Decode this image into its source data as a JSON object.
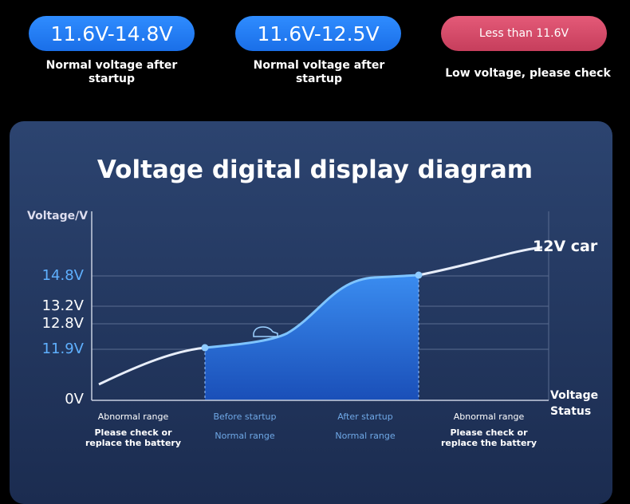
{
  "badges": [
    {
      "label": "11.6V-14.8V",
      "caption": "Normal voltage after startup"
    },
    {
      "label": "11.6V-12.5V",
      "caption": "Normal voltage after startup"
    },
    {
      "label": "Less than 11.6V",
      "caption": "Low voltage, please check"
    }
  ],
  "diagram": {
    "title": "Voltage digital display diagram",
    "y_axis_label": "Voltage/V",
    "x_axis_label": "Voltage Status",
    "line_label": "12V car",
    "y_labels": [
      "14.8V",
      "13.2V",
      "12.8V",
      "11.9V",
      "0V"
    ],
    "regions": [
      {
        "name": "Abnormal range",
        "note": "Please check or replace the battery"
      },
      {
        "name": "Before startup",
        "note": "Normal range"
      },
      {
        "name": "After startup",
        "note": "Normal range"
      },
      {
        "name": "Abnormal range",
        "note": "Please check or replace the battery"
      }
    ]
  }
}
